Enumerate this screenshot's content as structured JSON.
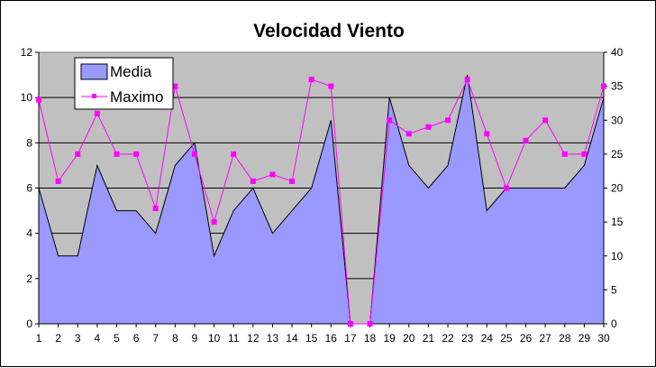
{
  "chart_data": {
    "type": "area",
    "title": "Velocidad Viento",
    "categories": [
      "1",
      "2",
      "3",
      "4",
      "5",
      "6",
      "7",
      "8",
      "9",
      "10",
      "11",
      "12",
      "13",
      "14",
      "15",
      "16",
      "17",
      "18",
      "19",
      "20",
      "21",
      "22",
      "23",
      "24",
      "25",
      "26",
      "27",
      "28",
      "29",
      "30"
    ],
    "series": [
      {
        "name": "Media",
        "type": "area",
        "axis": "left",
        "color": "#9999ff",
        "values": [
          6,
          3,
          3,
          7,
          5,
          5,
          4,
          7,
          8,
          3,
          5,
          6,
          4,
          5,
          6,
          9,
          0,
          0,
          10,
          7,
          6,
          7,
          11,
          5,
          6,
          6,
          6,
          6,
          7,
          10
        ]
      },
      {
        "name": "Maximo",
        "type": "line",
        "axis": "right",
        "color": "#ff00ff",
        "marker": "square",
        "values": [
          33,
          21,
          25,
          31,
          25,
          25,
          17,
          35,
          25,
          15,
          25,
          21,
          22,
          21,
          36,
          35,
          0,
          0,
          30,
          28,
          29,
          30,
          36,
          28,
          20,
          27,
          30,
          25,
          25,
          35
        ]
      }
    ],
    "y_left": {
      "min": 0,
      "max": 12,
      "step": 2,
      "ticks": [
        "0",
        "2",
        "4",
        "6",
        "8",
        "10",
        "12"
      ]
    },
    "y_right": {
      "min": 0,
      "max": 40,
      "step": 5,
      "ticks": [
        "0",
        "5",
        "10",
        "15",
        "20",
        "25",
        "30",
        "35",
        "40"
      ]
    },
    "grid": true,
    "legend": "top-left",
    "plot_background": "#c0c0c0"
  }
}
